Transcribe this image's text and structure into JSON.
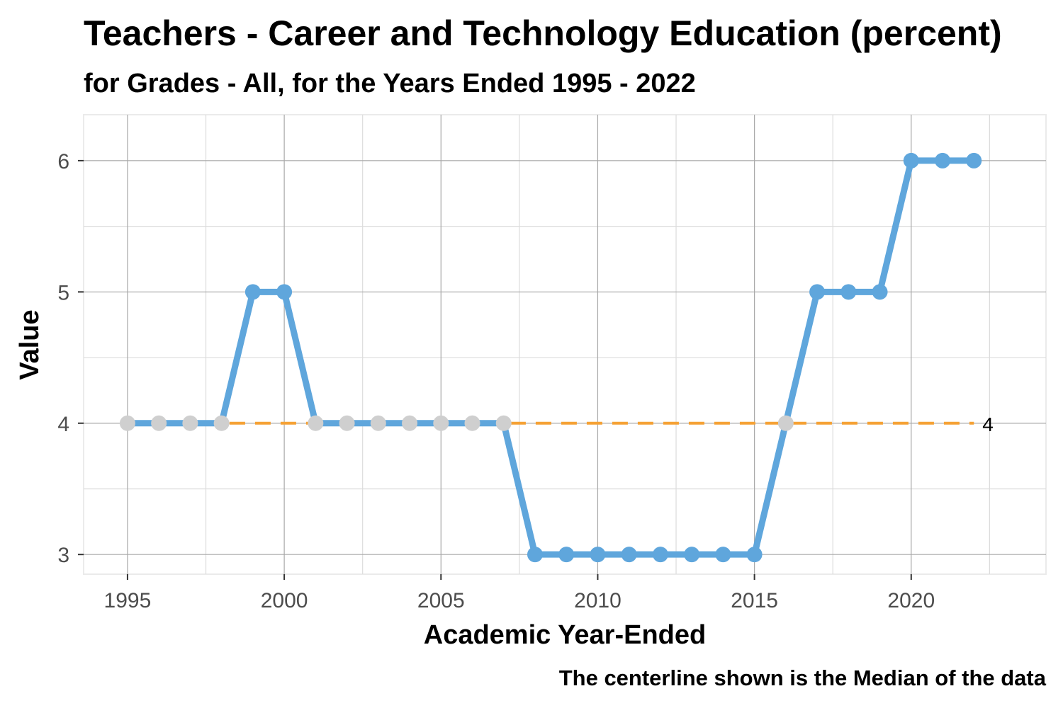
{
  "chart_data": {
    "type": "line",
    "title": "Teachers - Career and Technology Education (percent)",
    "subtitle": "for Grades - All, for the Years Ended 1995  -  2022",
    "xlabel": "Academic Year-Ended",
    "ylabel": "Value",
    "caption": "The centerline shown is the Median of the data",
    "x": [
      1995,
      1996,
      1997,
      1998,
      1999,
      2000,
      2001,
      2002,
      2003,
      2004,
      2005,
      2006,
      2007,
      2008,
      2009,
      2010,
      2011,
      2012,
      2013,
      2014,
      2015,
      2016,
      2017,
      2018,
      2019,
      2020,
      2021,
      2022
    ],
    "series": [
      {
        "values": [
          4,
          4,
          4,
          4,
          5,
          5,
          4,
          4,
          4,
          4,
          4,
          4,
          4,
          3,
          3,
          3,
          3,
          3,
          3,
          3,
          3,
          4,
          5,
          5,
          5,
          6,
          6,
          6
        ]
      }
    ],
    "xlim": [
      1993.6,
      2024.3
    ],
    "ylim": [
      2.85,
      6.35
    ],
    "x_ticks": [
      1995,
      2000,
      2005,
      2010,
      2015,
      2020
    ],
    "y_ticks": [
      3,
      4,
      5,
      6
    ],
    "median": 4,
    "median_label": "4",
    "grid": true,
    "colors": {
      "line": "#5fa6dc",
      "point": "#5fa6dc",
      "point_on_median": "#cfcfcf",
      "median_line": "#f5a236",
      "grid_major": "#a8a8a8",
      "grid_minor": "#dcdcdc",
      "panel_border": "#ebebeb"
    }
  }
}
